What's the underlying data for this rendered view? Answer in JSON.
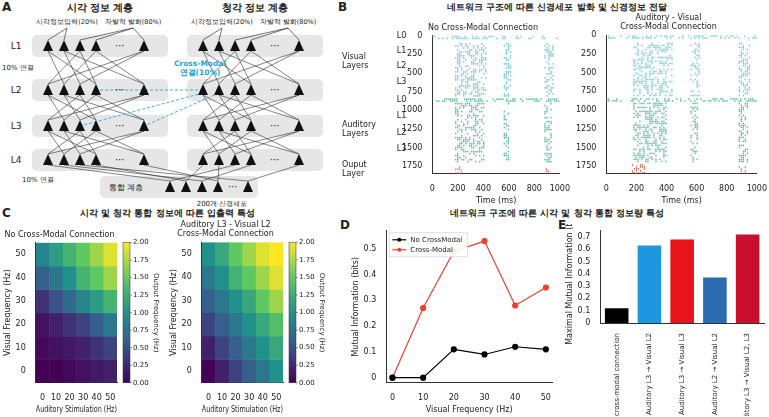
{
  "headings": {
    "B": "네트워크 구조에 따른 신경세포 발화 및 신경정보 전달",
    "C": "시각 및 청각 통합 정보에 따른 입출력 특성",
    "DE": "네트워크 구조에 따른 시각 및 청각 통합 정보량 특성"
  },
  "diagram": {
    "panel": "A",
    "columns": [
      {
        "title": "시각 정보 계층",
        "inputs": [
          "시각정보입력(20%)",
          "자발적 발화(80%)"
        ]
      },
      {
        "title": "청각 정보 계층",
        "inputs": [
          "시각정보입력(20%)",
          "자발적 발화(80%)"
        ]
      }
    ],
    "layers": [
      "L1",
      "L2",
      "L3",
      "L4"
    ],
    "ellipsis": "⋯",
    "connection_label": "10% 연결",
    "cross_modal_label": "Cross-Modal\n연결(10%)",
    "output_connection_label": "10% 연결",
    "integration": {
      "title": "통합 계층",
      "size_label": "200개 신경세포"
    }
  },
  "chart_data": [
    {
      "panel": "B",
      "type": "raster",
      "title": "No Cross-Modal Connection",
      "x_label": "Time (ms)",
      "xlim": [
        0,
        1000
      ],
      "xticks": [
        0,
        200,
        400,
        600,
        800,
        1000
      ],
      "ylim": [
        1850,
        0
      ],
      "yticks": [
        0,
        250,
        500,
        750,
        1000,
        1250,
        1500,
        1750
      ],
      "grid": false,
      "row_labels": [
        {
          "label": "L0",
          "value": 0
        },
        {
          "label": "L1",
          "value": 200
        },
        {
          "label": "L2",
          "value": 400
        },
        {
          "label": "L3",
          "value": 620
        },
        {
          "label": "L0",
          "value": 860
        },
        {
          "label": "L1",
          "value": 1080
        },
        {
          "label": "L2",
          "value": 1300
        },
        {
          "label": "L3",
          "value": 1520
        }
      ],
      "group_labels": [
        {
          "label": "Visual\nLayers",
          "value": 350
        },
        {
          "label": "Auditory\nLayers",
          "value": 1250
        },
        {
          "label": "Ouput\nLayer",
          "value": 1790
        }
      ],
      "activity": [
        {
          "color": "#45b5c4",
          "blocks": [
            [
              0,
              40,
              0,
              1000
            ],
            [
              100,
              820,
              180,
              420
            ],
            [
              100,
              820,
              560,
              620
            ],
            [
              100,
              820,
              880,
              950
            ]
          ]
        },
        {
          "color": "#2a9d7f",
          "blocks": [
            [
              840,
              880,
              0,
              1000
            ],
            [
              900,
              1700,
              180,
              400
            ],
            [
              900,
              1700,
              560,
              600
            ],
            [
              900,
              1700,
              880,
              940
            ]
          ]
        },
        {
          "color": "#e0533a",
          "blocks": [
            [
              1750,
              1850,
              180,
              240
            ],
            [
              1750,
              1850,
              890,
              920
            ]
          ]
        }
      ]
    },
    {
      "type": "raster",
      "title": "Auditory - Visual\nCross-Modal Connection",
      "x_label": "Time (ms)",
      "xlim": [
        0,
        1000
      ],
      "xticks": [
        0,
        200,
        400,
        600,
        800,
        1000
      ],
      "ylim": [
        1850,
        0
      ],
      "yticks": [
        0,
        250,
        500,
        750,
        1000,
        1250,
        1500,
        1750
      ],
      "grid": false,
      "activity": [
        {
          "color": "#45b5c4",
          "blocks": [
            [
              0,
              40,
              0,
              1000
            ],
            [
              100,
              820,
              180,
              440
            ],
            [
              100,
              820,
              560,
              620
            ],
            [
              100,
              820,
              880,
              950
            ]
          ]
        },
        {
          "color": "#2a9d7f",
          "blocks": [
            [
              840,
              880,
              0,
              1000
            ],
            [
              900,
              1700,
              180,
              400
            ],
            [
              900,
              1700,
              560,
              600
            ],
            [
              900,
              1700,
              880,
              940
            ]
          ]
        },
        {
          "color": "#e0533a",
          "blocks": [
            [
              1720,
              1850,
              170,
              260
            ],
            [
              1750,
              1850,
              880,
              930
            ]
          ]
        }
      ]
    },
    {
      "panel": "C",
      "type": "heatmap",
      "title": "No Cross-Modal Connection",
      "x_label": "Auditory Stimulation (Hz)",
      "y_label": "Visual Frequency (Hz)",
      "x": [
        0,
        10,
        20,
        30,
        40,
        50
      ],
      "y": [
        0,
        10,
        20,
        30,
        40,
        50
      ],
      "xlim": [
        -5,
        55
      ],
      "ylim": [
        -5,
        55
      ],
      "xticks": [
        0,
        10,
        20,
        30,
        40,
        50
      ],
      "yticks": [
        0,
        10,
        20,
        30,
        40,
        50
      ],
      "grid": false,
      "values": [
        [
          0,
          0,
          0.05,
          0.1,
          0.15,
          0.2
        ],
        [
          0.05,
          0.1,
          0.15,
          0.2,
          0.3,
          0.4
        ],
        [
          0.1,
          0.2,
          0.3,
          0.4,
          0.6,
          0.8
        ],
        [
          0.3,
          0.5,
          0.7,
          0.9,
          1.1,
          1.3
        ],
        [
          0.6,
          0.8,
          1.0,
          1.3,
          1.5,
          1.7
        ],
        [
          0.9,
          1.1,
          1.3,
          1.5,
          1.7,
          1.9
        ]
      ],
      "colorbar": {
        "label": "Output Frequency (Hz)",
        "range": [
          0,
          2
        ],
        "ticks": [
          {
            "value": 0,
            "label": "0.00"
          },
          {
            "value": 0.25,
            "label": "0.25"
          },
          {
            "value": 0.5,
            "label": "0.50"
          },
          {
            "value": 0.75,
            "label": "0.75"
          },
          {
            "value": 1,
            "label": "1.00"
          },
          {
            "value": 1.25,
            "label": "1.25"
          },
          {
            "value": 1.5,
            "label": "1.50"
          },
          {
            "value": 1.75,
            "label": "1.75"
          },
          {
            "value": 2,
            "label": "2.00"
          }
        ]
      }
    },
    {
      "type": "heatmap",
      "title": "Auditory L3 - Visual L2\nCross-Modal Connection",
      "x_label": "Auditory Stimulation (Hz)",
      "y_label": "Visual Frequency (Hz)",
      "x": [
        0,
        10,
        20,
        30,
        40,
        50
      ],
      "y": [
        0,
        10,
        20,
        30,
        40,
        50
      ],
      "xlim": [
        -5,
        55
      ],
      "ylim": [
        -5,
        55
      ],
      "xticks": [
        0,
        10,
        20,
        30,
        40,
        50
      ],
      "yticks": [
        0,
        10,
        20,
        30,
        40,
        50
      ],
      "grid": false,
      "values": [
        [
          0,
          0.2,
          0.4,
          0.6,
          0.8,
          1.0
        ],
        [
          0.2,
          0.4,
          0.6,
          0.8,
          1.0,
          1.2
        ],
        [
          0.4,
          0.6,
          0.8,
          1.0,
          1.2,
          1.4
        ],
        [
          0.6,
          0.8,
          1.0,
          1.2,
          1.5,
          1.7
        ],
        [
          0.8,
          1.0,
          1.3,
          1.5,
          1.7,
          1.9
        ],
        [
          1.0,
          1.2,
          1.5,
          1.7,
          1.9,
          2.0
        ]
      ],
      "colorbar": {
        "label": "Output Frequency (Hz)",
        "range": [
          0,
          2
        ],
        "ticks": [
          {
            "value": 0,
            "label": "0.00"
          },
          {
            "value": 0.25,
            "label": "0.25"
          },
          {
            "value": 0.5,
            "label": "0.50"
          },
          {
            "value": 0.75,
            "label": "0.75"
          },
          {
            "value": 1,
            "label": "1.00"
          },
          {
            "value": 1.25,
            "label": "1.25"
          },
          {
            "value": 1.5,
            "label": "1.50"
          },
          {
            "value": 1.75,
            "label": "1.75"
          },
          {
            "value": 2,
            "label": "2.00"
          }
        ]
      }
    },
    {
      "panel": "D",
      "type": "line",
      "x_label": "Visual Frequency (Hz)",
      "y_label": "Mutual Information (bits)",
      "x": [
        0,
        10,
        20,
        30,
        40,
        50
      ],
      "xlim": [
        -2,
        52
      ],
      "xticks": [
        0,
        10,
        20,
        30,
        40,
        50
      ],
      "ylim": [
        -0.02,
        0.57
      ],
      "yticks": [
        0,
        0.1,
        0.2,
        0.3,
        0.4,
        0.5
      ],
      "grid": false,
      "legend": "upper left",
      "series": [
        {
          "name": "No CrossModal",
          "color": "#000000",
          "marker": "o",
          "values": [
            0,
            0,
            0.11,
            0.09,
            0.12,
            0.11
          ]
        },
        {
          "name": "Cross-Modal",
          "color": "#e8432f",
          "marker": "o",
          "values": [
            0,
            0.27,
            0.49,
            0.53,
            0.28,
            0.35
          ]
        }
      ]
    },
    {
      "panel": "E",
      "type": "bar",
      "y_label": "Maximal Mutual Information (bits)",
      "categories": [
        "No cross-modal connection",
        "Auditory L3 → Visual L2",
        "Auditory L3 → Visual L3",
        "Auditory L2 → Visual L2",
        "Auditory L3 → Visual L2, L3"
      ],
      "values": [
        0.12,
        0.63,
        0.68,
        0.37,
        0.72
      ],
      "colors": [
        "#000000",
        "#1f96e0",
        "#e8141c",
        "#2b6cb0",
        "#c8102e"
      ],
      "ylim": [
        0,
        0.75
      ],
      "yticks": [
        0,
        0.1,
        0.2,
        0.3,
        0.4,
        0.5,
        0.6,
        0.7
      ],
      "grid": false
    }
  ]
}
